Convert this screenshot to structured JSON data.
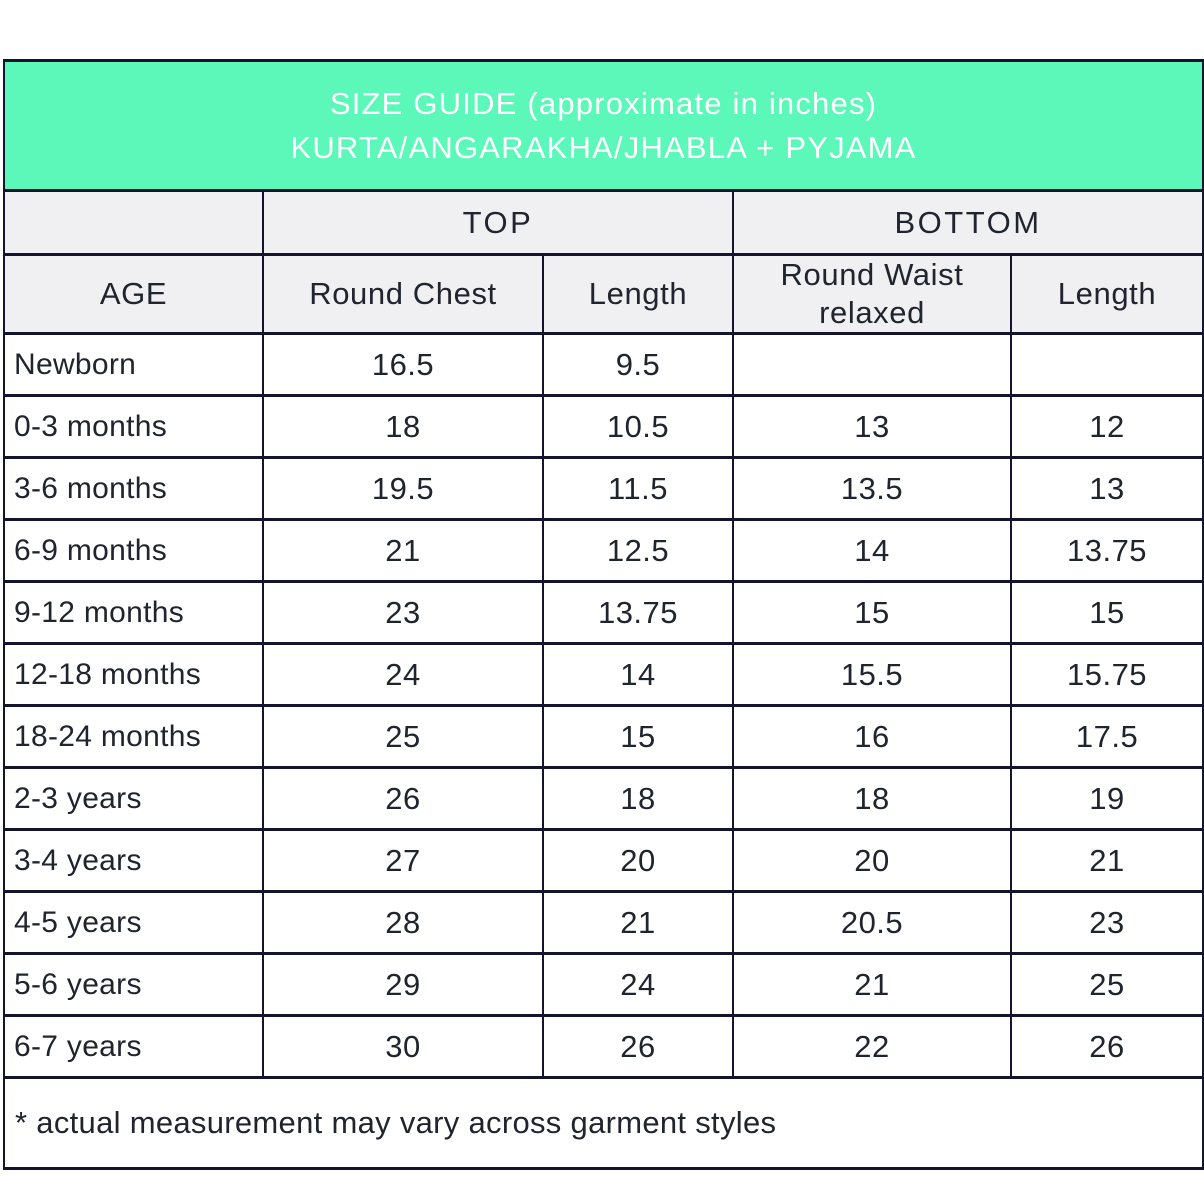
{
  "chart_data": {
    "type": "table",
    "title": "SIZE GUIDE (approximate in inches)",
    "subtitle": "KURTA/ANGARAKHA/JHABLA + PYJAMA",
    "column_groups": [
      {
        "label": "",
        "span": 1
      },
      {
        "label": "TOP",
        "span": 2
      },
      {
        "label": "BOTTOM",
        "span": 2
      }
    ],
    "columns": [
      "AGE",
      "Round Chest",
      "Length",
      "Round Waist relaxed",
      "Length"
    ],
    "rows": [
      [
        "Newborn",
        "16.5",
        "9.5",
        "",
        ""
      ],
      [
        "0-3 months",
        "18",
        "10.5",
        "13",
        "12"
      ],
      [
        "3-6 months",
        "19.5",
        "11.5",
        "13.5",
        "13"
      ],
      [
        "6-9 months",
        "21",
        "12.5",
        "14",
        "13.75"
      ],
      [
        "9-12 months",
        "23",
        "13.75",
        "15",
        "15"
      ],
      [
        "12-18 months",
        "24",
        "14",
        "15.5",
        "15.75"
      ],
      [
        "18-24 months",
        "25",
        "15",
        "16",
        "17.5"
      ],
      [
        "2-3 years",
        "26",
        "18",
        "18",
        "19"
      ],
      [
        "3-4 years",
        "27",
        "20",
        "20",
        "21"
      ],
      [
        "4-5 years",
        "28",
        "21",
        "20.5",
        "23"
      ],
      [
        "5-6 years",
        "29",
        "24",
        "21",
        "25"
      ],
      [
        "6-7 years",
        "30",
        "26",
        "22",
        "26"
      ]
    ],
    "footnote": "* actual measurement may vary across garment styles",
    "layout": {
      "grid": "on",
      "units": "inches"
    }
  },
  "colors": {
    "banner_bg": "#5bf8ba",
    "banner_text": "#ffffff",
    "header_row_bg": "#f0f0f2",
    "border": "#14142e",
    "text": "#20242e"
  }
}
